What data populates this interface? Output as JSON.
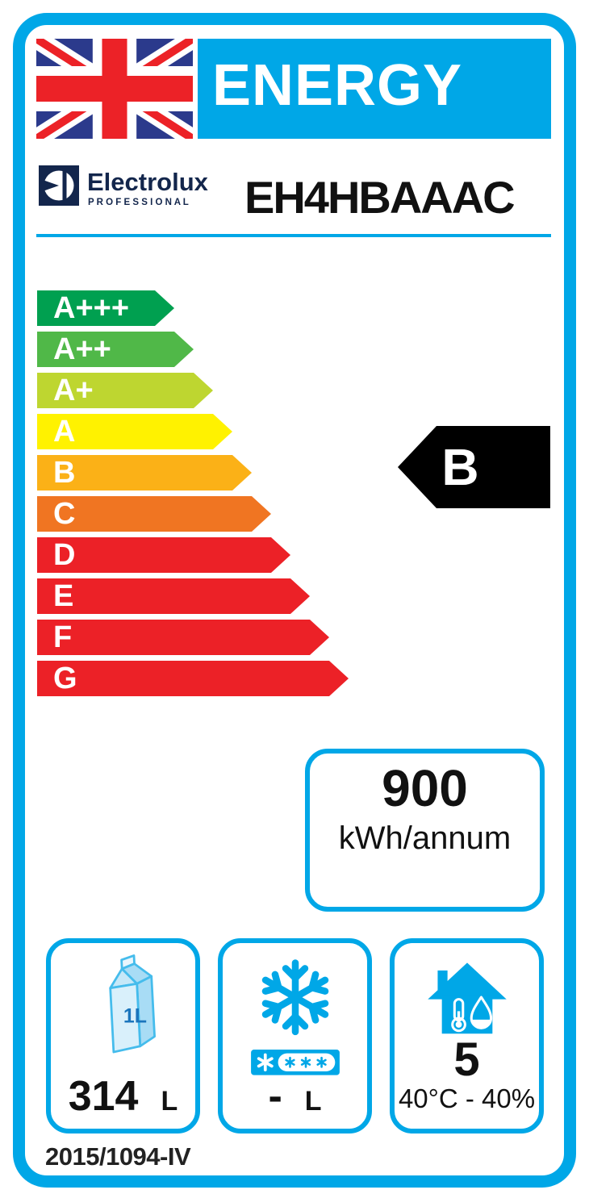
{
  "header": {
    "title": "ENERGY",
    "flag": "union-jack-icon"
  },
  "brand": {
    "logo_text": "Electrolux",
    "logo_subtext": "P R O F E S S I O N A L",
    "model": "EH4HBAAAC"
  },
  "rating_scale": {
    "items": [
      {
        "label": "A+++",
        "color": "#00A050"
      },
      {
        "label": "A++",
        "color": "#50B848"
      },
      {
        "label": "A+",
        "color": "#BED630"
      },
      {
        "label": "A",
        "color": "#FFF200"
      },
      {
        "label": "B",
        "color": "#FBB117"
      },
      {
        "label": "C",
        "color": "#F07522"
      },
      {
        "label": "D",
        "color": "#EC2127"
      },
      {
        "label": "E",
        "color": "#EC2127"
      },
      {
        "label": "F",
        "color": "#EC2127"
      },
      {
        "label": "G",
        "color": "#EC2127"
      }
    ]
  },
  "current_rating": {
    "label": "B",
    "arrow_color": "#000000"
  },
  "energy": {
    "value": "900",
    "unit": "kWh/annum"
  },
  "metrics": {
    "fresh_volume": {
      "icon": "milk-carton-icon",
      "carton_label": "1L",
      "value": "314",
      "unit": "L"
    },
    "frozen_volume": {
      "icon": "snowflake-icon",
      "value": "-",
      "unit": "L"
    },
    "climate_class": {
      "icon": "house-climate-icon",
      "value": "5",
      "range": "40°C - 40%"
    }
  },
  "footer": {
    "regulation": "2015/1094-IV"
  },
  "colors": {
    "accent_blue": "#00A7E7",
    "flag_navy": "#2B3A8C",
    "flag_red": "#EC2227",
    "logo_navy": "#13264C",
    "carton_front": "#D9F0FB",
    "carton_side": "#A8DCF5",
    "carton_stroke": "#45BCEC",
    "carton_text": "#1B75BC"
  }
}
